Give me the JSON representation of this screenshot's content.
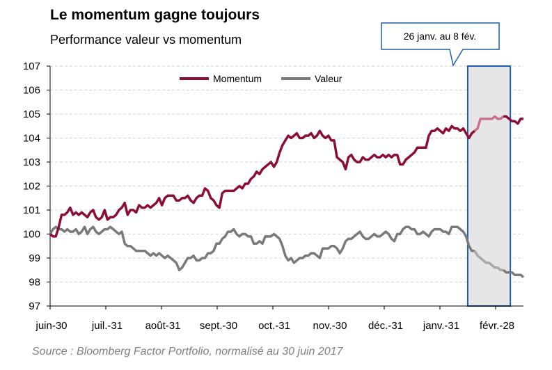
{
  "chart_data": {
    "type": "line",
    "title": "Le momentum gagne toujours",
    "subtitle": "Performance valeur vs momentum",
    "source": "Source : Bloomberg Factor Portfolio, normalisé au 30 juin 2017",
    "xlabels": [
      "juin-30",
      "juil.-31",
      "août-31",
      "sept.-30",
      "oct.-31",
      "nov.-30",
      "déc.-31",
      "janv.-31",
      "févr.-28"
    ],
    "ylim": [
      97,
      107
    ],
    "yticks": [
      97,
      98,
      99,
      100,
      101,
      102,
      103,
      104,
      105,
      106,
      107
    ],
    "grid": true,
    "legend_position": "top-center",
    "highlight": {
      "label": "26 janv. au 8 fév.",
      "start_index": 148,
      "end_index": 158
    },
    "colors": {
      "momentum": "#8b0e35",
      "momentum_highlight": "#c9708e",
      "valeur": "#7a7a7a",
      "valeur_highlight": "#a8a8a8",
      "highlight_fill": "#e6e6e6",
      "highlight_border": "#1f5faa",
      "grid": "#d4d4d4"
    },
    "series": [
      {
        "name": "Momentum",
        "key": "momentum",
        "values": [
          100.0,
          99.9,
          99.9,
          100.3,
          100.8,
          100.8,
          100.9,
          101.1,
          100.8,
          100.9,
          100.8,
          100.9,
          100.8,
          100.7,
          100.9,
          101.0,
          100.7,
          100.6,
          100.7,
          101.0,
          100.6,
          100.7,
          100.7,
          100.8,
          101.0,
          101.1,
          101.3,
          100.8,
          101.0,
          101.0,
          100.9,
          101.2,
          101.1,
          101.1,
          101.2,
          101.1,
          101.2,
          101.3,
          101.5,
          101.2,
          101.5,
          101.6,
          101.6,
          101.6,
          101.4,
          101.4,
          101.5,
          101.5,
          101.6,
          101.4,
          101.3,
          101.5,
          101.6,
          101.6,
          101.9,
          101.8,
          101.5,
          101.4,
          101.2,
          101.1,
          101.7,
          101.8,
          101.8,
          101.8,
          101.8,
          101.9,
          102.0,
          101.9,
          102.1,
          102.1,
          102.3,
          102.4,
          102.6,
          102.5,
          102.7,
          102.8,
          102.9,
          103.0,
          102.8,
          103.0,
          103.4,
          103.7,
          103.9,
          104.1,
          104.0,
          104.1,
          104.2,
          104.0,
          104.0,
          104.1,
          104.1,
          104.2,
          104.0,
          104.1,
          104.3,
          104.1,
          104.0,
          104.1,
          103.9,
          103.9,
          103.2,
          103.1,
          103.0,
          102.7,
          103.2,
          103.3,
          103.1,
          103.0,
          103.0,
          103.2,
          103.1,
          103.1,
          103.2,
          103.3,
          103.2,
          103.2,
          103.3,
          103.2,
          103.3,
          103.2,
          103.3,
          103.3,
          102.9,
          102.9,
          103.1,
          103.2,
          103.3,
          103.4,
          103.6,
          103.6,
          103.6,
          103.6,
          104.1,
          104.3,
          104.3,
          104.4,
          104.3,
          104.2,
          104.4,
          104.3,
          104.5,
          104.4,
          104.4,
          104.3,
          104.4,
          104.2,
          104.0,
          104.2,
          104.3,
          104.4,
          104.8,
          104.8,
          104.8,
          104.8,
          104.8,
          104.9,
          104.8,
          104.8,
          104.9,
          104.9,
          104.8,
          104.7,
          104.7,
          104.6,
          104.8,
          104.8
        ]
      },
      {
        "name": "Valeur",
        "key": "valeur",
        "values": [
          100.0,
          100.2,
          100.3,
          100.2,
          100.2,
          100.1,
          100.2,
          100.1,
          100.1,
          100.2,
          100.0,
          100.1,
          100.3,
          100.0,
          100.2,
          100.3,
          100.1,
          100.0,
          100.1,
          100.2,
          100.2,
          100.3,
          100.2,
          100.1,
          100.0,
          100.1,
          99.6,
          99.5,
          99.5,
          99.4,
          99.3,
          99.3,
          99.3,
          99.3,
          99.2,
          99.1,
          99.2,
          99.1,
          99.2,
          99.1,
          99.0,
          99.1,
          99.0,
          98.9,
          98.8,
          98.5,
          98.6,
          98.8,
          99.0,
          99.0,
          99.1,
          98.9,
          98.9,
          99.0,
          99.0,
          99.2,
          99.2,
          99.3,
          99.6,
          99.6,
          99.8,
          99.9,
          100.1,
          100.1,
          100.2,
          100.0,
          99.9,
          100.0,
          100.0,
          99.9,
          99.9,
          99.6,
          99.6,
          99.7,
          99.6,
          99.9,
          99.9,
          99.9,
          100.0,
          99.9,
          99.8,
          99.5,
          99.1,
          98.9,
          99.0,
          98.8,
          98.9,
          99.0,
          99.0,
          99.1,
          99.1,
          99.2,
          99.2,
          99.1,
          99.0,
          99.4,
          99.4,
          99.4,
          99.5,
          99.5,
          99.4,
          99.2,
          99.4,
          99.7,
          99.8,
          99.8,
          99.9,
          100.0,
          100.1,
          99.9,
          99.8,
          99.8,
          99.9,
          100.0,
          99.9,
          99.9,
          100.0,
          100.1,
          100.0,
          99.8,
          99.7,
          100.0,
          100.0,
          100.2,
          100.3,
          100.3,
          100.2,
          100.2,
          100.0,
          100.0,
          100.1,
          100.0,
          99.9,
          100.1,
          100.2,
          100.2,
          100.2,
          100.1,
          100.1,
          100.0,
          100.3,
          100.3,
          100.3,
          100.2,
          100.1,
          99.9,
          99.5,
          99.3,
          99.3,
          99.1,
          99.0,
          98.9,
          98.8,
          98.8,
          98.7,
          98.6,
          98.6,
          98.5,
          98.5,
          98.4,
          98.4,
          98.4,
          98.3,
          98.3,
          98.3,
          98.2,
          98.1,
          98.1,
          98.2,
          98.1
        ]
      }
    ]
  }
}
